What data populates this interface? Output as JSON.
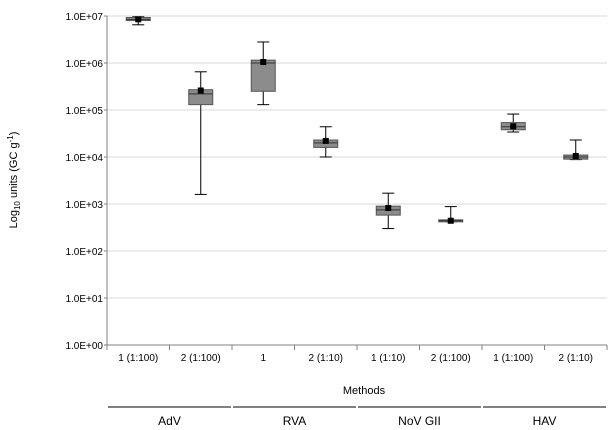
{
  "chart_data": {
    "type": "box",
    "y_scale": "log10",
    "ylim": [
      1,
      10000000
    ],
    "y_ticks": [
      {
        "value": 1,
        "label": "1.0E+00"
      },
      {
        "value": 10,
        "label": "1.0E+01"
      },
      {
        "value": 100,
        "label": "1.0E+02"
      },
      {
        "value": 1000,
        "label": "1.0E+03"
      },
      {
        "value": 10000,
        "label": "1.0E+04"
      },
      {
        "value": 100000,
        "label": "1.0E+05"
      },
      {
        "value": 1000000,
        "label": "1.0E+06"
      },
      {
        "value": 10000000,
        "label": "1.0E+07"
      }
    ],
    "ylabel": {
      "prefix": "Log",
      "subscript": "10",
      "mid": " units (GC g",
      "superscript": "-1",
      "suffix": ")"
    },
    "xlabel": "Methods",
    "grid": true,
    "categories": [
      "1 (1:100)",
      "2 (1:100)",
      "1",
      "2 (1:10)",
      "1 (1:10)",
      "2 (1:100)",
      "1 (1:100)",
      "2 (1:10)"
    ],
    "groups": [
      {
        "name": "AdV",
        "span": [
          0,
          1
        ]
      },
      {
        "name": "RVA",
        "span": [
          2,
          3
        ]
      },
      {
        "name": "NoV GII",
        "span": [
          4,
          5
        ]
      },
      {
        "name": "HAV",
        "span": [
          6,
          7
        ]
      }
    ],
    "boxes": [
      {
        "min": 6500000,
        "q1": 8000000,
        "median": 8500000,
        "q3": 9300000,
        "max": 9600000,
        "mean": 8500000
      },
      {
        "min": 1600,
        "q1": 130000,
        "median": 220000,
        "q3": 270000,
        "max": 650000,
        "mean": 260000
      },
      {
        "min": 130000,
        "q1": 250000,
        "median": 1000000,
        "q3": 1150000,
        "max": 2800000,
        "mean": 1050000
      },
      {
        "min": 10000,
        "q1": 16000,
        "median": 20000,
        "q3": 23000,
        "max": 44000,
        "mean": 22000
      },
      {
        "min": 300,
        "q1": 580,
        "median": 750,
        "q3": 900,
        "max": 1700,
        "mean": 820
      },
      {
        "min": 420,
        "q1": 420,
        "median": 440,
        "q3": 460,
        "max": 880,
        "mean": 440
      },
      {
        "min": 34000,
        "q1": 38000,
        "median": 44000,
        "q3": 54000,
        "max": 82000,
        "mean": 45000
      },
      {
        "min": 8800,
        "q1": 9000,
        "median": 10000,
        "q3": 11000,
        "max": 23000,
        "mean": 10500
      }
    ],
    "colors": {
      "box_fill": "#8c8c8c",
      "box_stroke": "#555555",
      "grid": "#d9d9d9",
      "axis": "#808080",
      "mean_marker": "#000000"
    }
  }
}
